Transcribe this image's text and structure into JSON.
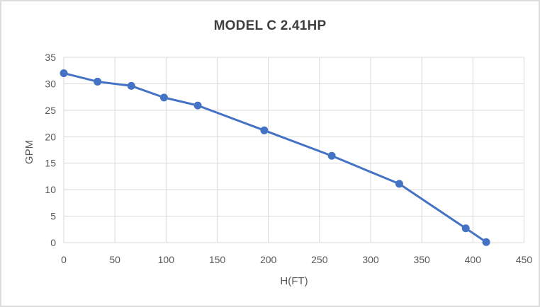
{
  "window": {
    "background": "#ffffff",
    "border_color": "#dcdcdc"
  },
  "chart_data": {
    "type": "line",
    "title": "MODEL C 2.41HP",
    "xlabel": "H(FT)",
    "ylabel": "GPM",
    "xlim": [
      0,
      450
    ],
    "ylim": [
      0,
      35
    ],
    "x_ticks": [
      0,
      50,
      100,
      150,
      200,
      250,
      300,
      350,
      400,
      450
    ],
    "y_ticks": [
      0,
      5,
      10,
      15,
      20,
      25,
      30,
      35
    ],
    "grid": true,
    "legend": false,
    "series": [
      {
        "x": [
          0,
          33,
          66,
          98,
          131,
          196,
          262,
          328,
          393,
          413
        ],
        "y": [
          32,
          30.4,
          29.6,
          27.4,
          25.9,
          21.2,
          16.4,
          11.1,
          2.7,
          0.1
        ],
        "color": "#4472C4",
        "marker": "circle",
        "line_width": 3,
        "marker_radius": 5.5
      }
    ],
    "colors": {
      "gridline": "#d9d9d9",
      "tick_label": "#595959",
      "axis_title": "#595959",
      "title": "#3f3f3f"
    }
  }
}
